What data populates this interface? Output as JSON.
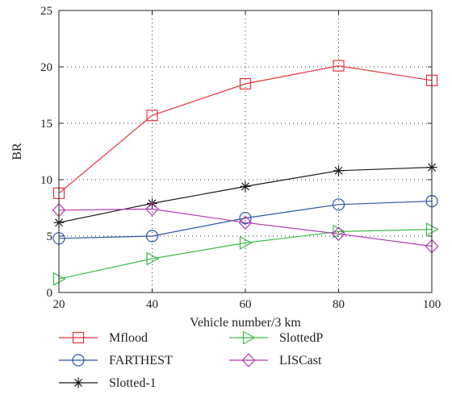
{
  "chart_data": {
    "type": "line",
    "title": "",
    "xlabel": "Vehicle number/3 km",
    "ylabel": "BR",
    "x": [
      20,
      40,
      60,
      80,
      100
    ],
    "xlim": [
      20,
      100
    ],
    "ylim": [
      0,
      25
    ],
    "xticks": [
      "20",
      "40",
      "60",
      "80",
      "100"
    ],
    "yticks": [
      "0",
      "5",
      "10",
      "15",
      "20",
      "25"
    ],
    "grid": true,
    "legend_position": "bottom",
    "series": [
      {
        "name": "Mflood",
        "values": [
          8.8,
          15.7,
          18.5,
          20.1,
          18.8
        ],
        "color": "#e8323c",
        "marker": "square"
      },
      {
        "name": "FARTHEST",
        "values": [
          4.8,
          5.0,
          6.6,
          7.8,
          8.1
        ],
        "color": "#2f56a8",
        "marker": "circle"
      },
      {
        "name": "Slotted-1",
        "values": [
          6.2,
          7.9,
          9.4,
          10.8,
          11.1
        ],
        "color": "#1a1a1a",
        "marker": "star"
      },
      {
        "name": "SlottedP",
        "values": [
          1.2,
          3.0,
          4.4,
          5.4,
          5.6
        ],
        "color": "#3dba4a",
        "marker": "triangle-right"
      },
      {
        "name": "LISCast",
        "values": [
          7.3,
          7.4,
          6.2,
          5.2,
          4.1
        ],
        "color": "#b03ab0",
        "marker": "diamond"
      }
    ]
  }
}
